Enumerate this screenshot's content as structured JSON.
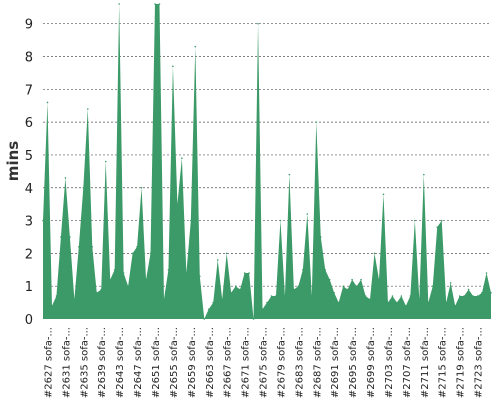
{
  "chart_data": {
    "type": "area",
    "title": "",
    "xlabel": "",
    "ylabel": "mins",
    "ylim": [
      0,
      9.6
    ],
    "yticks": [
      0,
      1,
      2,
      3,
      4,
      5,
      6,
      7,
      8,
      9
    ],
    "grid": true,
    "legend": "none",
    "color": "#3b9a67",
    "xtick_labels": [
      "#2627 sofa-...",
      "#2631 sofa-...",
      "#2635 sofa-...",
      "#2639 sofa-...",
      "#2643 sofa-...",
      "#2647 sofa-...",
      "#2651 sofa-...",
      "#2655 sofa-...",
      "#2659 sofa-...",
      "#2663 sofa-...",
      "#2667 sofa-...",
      "#2671 sofa-...",
      "#2675 sofa-...",
      "#2679 sofa-...",
      "#2683 sofa-...",
      "#2687 sofa-...",
      "#2691 sofa-...",
      "#2695 sofa-...",
      "#2699 sofa-...",
      "#2703 sofa-...",
      "#2707 sofa-...",
      "#2711 sofa-...",
      "#2715 sofa-...",
      "#2719 sofa-...",
      "#2723 sofa-..."
    ],
    "x": [
      2626,
      2627,
      2628,
      2629,
      2630,
      2631,
      2632,
      2633,
      2634,
      2635,
      2636,
      2637,
      2638,
      2639,
      2640,
      2641,
      2642,
      2643,
      2644,
      2645,
      2646,
      2647,
      2648,
      2649,
      2650,
      2651,
      2652,
      2653,
      2654,
      2655,
      2656,
      2657,
      2658,
      2659,
      2660,
      2661,
      2662,
      2663,
      2664,
      2665,
      2666,
      2667,
      2668,
      2669,
      2670,
      2671,
      2672,
      2673,
      2674,
      2675,
      2676,
      2677,
      2678,
      2679,
      2680,
      2681,
      2682,
      2683,
      2684,
      2685,
      2686,
      2687,
      2688,
      2689,
      2690,
      2691,
      2692,
      2693,
      2694,
      2695,
      2696,
      2697,
      2698,
      2699,
      2700,
      2701,
      2702,
      2703,
      2704,
      2705,
      2706,
      2707,
      2708,
      2709,
      2710,
      2711,
      2712,
      2713,
      2714,
      2715,
      2716,
      2717,
      2718,
      2719,
      2720,
      2721,
      2722,
      2723,
      2724,
      2725,
      2726
    ],
    "values": [
      3.0,
      6.6,
      0.4,
      0.7,
      2.5,
      4.3,
      2.5,
      0.6,
      2.2,
      4.0,
      6.4,
      2.2,
      0.8,
      0.9,
      4.8,
      1.2,
      1.5,
      9.6,
      1.4,
      1.0,
      2.0,
      2.2,
      4.0,
      1.2,
      2.0,
      9.6,
      9.6,
      0.6,
      1.5,
      7.7,
      3.5,
      4.9,
      1.4,
      3.0,
      8.3,
      1.3,
      0.0,
      0.3,
      0.5,
      1.8,
      0.6,
      2.0,
      0.8,
      1.0,
      0.9,
      1.4,
      1.4,
      0.0,
      9.0,
      0.3,
      0.5,
      0.7,
      0.7,
      3.0,
      0.7,
      4.4,
      0.9,
      1.0,
      1.5,
      3.2,
      0.7,
      6.0,
      2.5,
      1.5,
      1.2,
      0.8,
      0.5,
      1.0,
      0.9,
      1.2,
      1.0,
      1.2,
      0.7,
      0.6,
      2.0,
      1.2,
      3.8,
      0.5,
      0.7,
      0.5,
      0.7,
      0.4,
      0.7,
      3.0,
      0.6,
      4.4,
      0.5,
      1.0,
      2.8,
      3.0,
      0.5,
      1.1,
      0.4,
      0.7,
      0.7,
      0.9,
      0.7,
      0.7,
      0.8,
      1.4,
      0.8
    ]
  }
}
